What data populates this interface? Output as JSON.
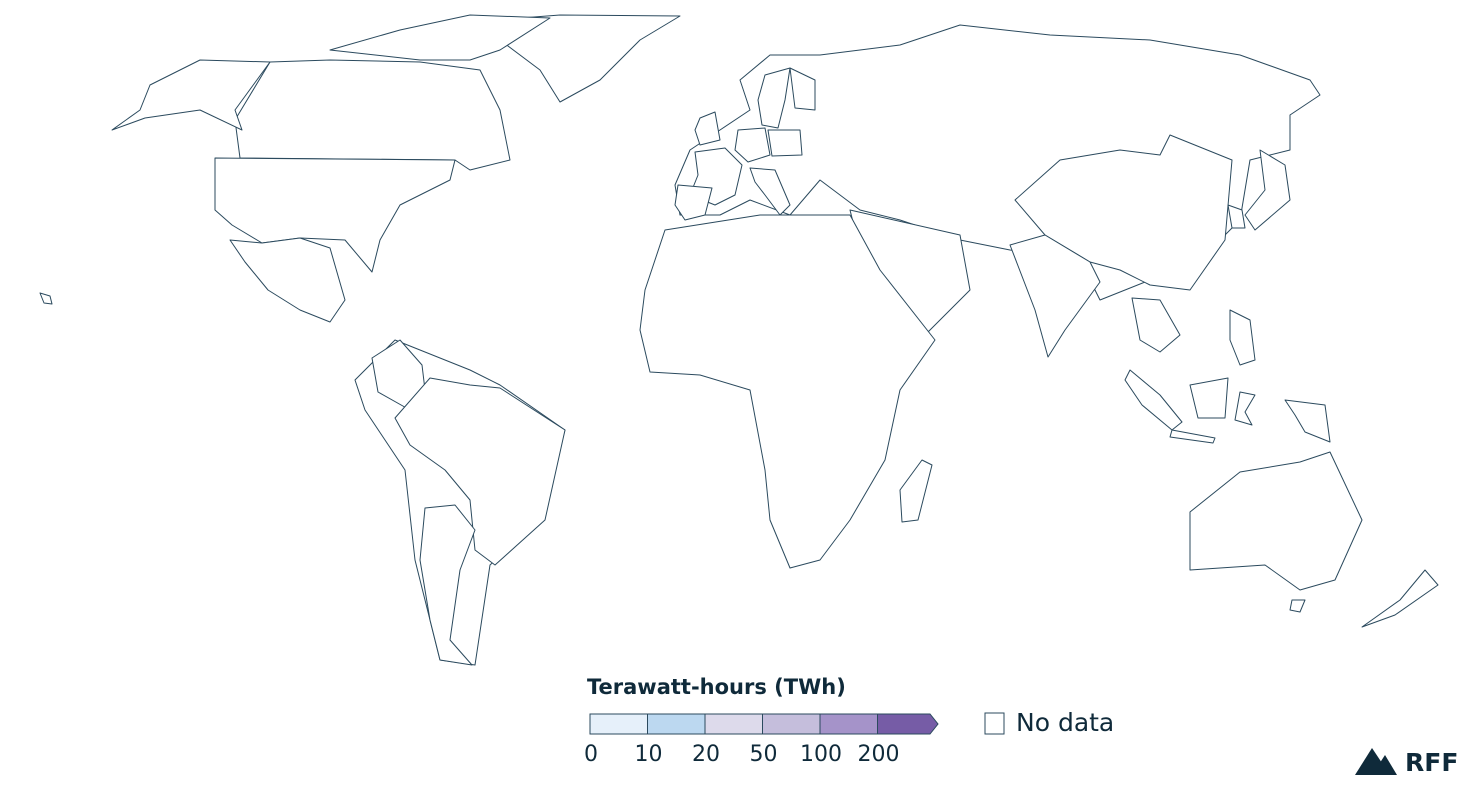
{
  "legend": {
    "title": "Terawatt-hours (TWh)",
    "colors": [
      "#e6f0fa",
      "#bcd8f0",
      "#dddaeb",
      "#c5bedc",
      "#a593c9",
      "#765ca6"
    ],
    "breaks": [
      0,
      10,
      20,
      50,
      100,
      200
    ],
    "no_data": "No data"
  },
  "logo": "RFF"
}
